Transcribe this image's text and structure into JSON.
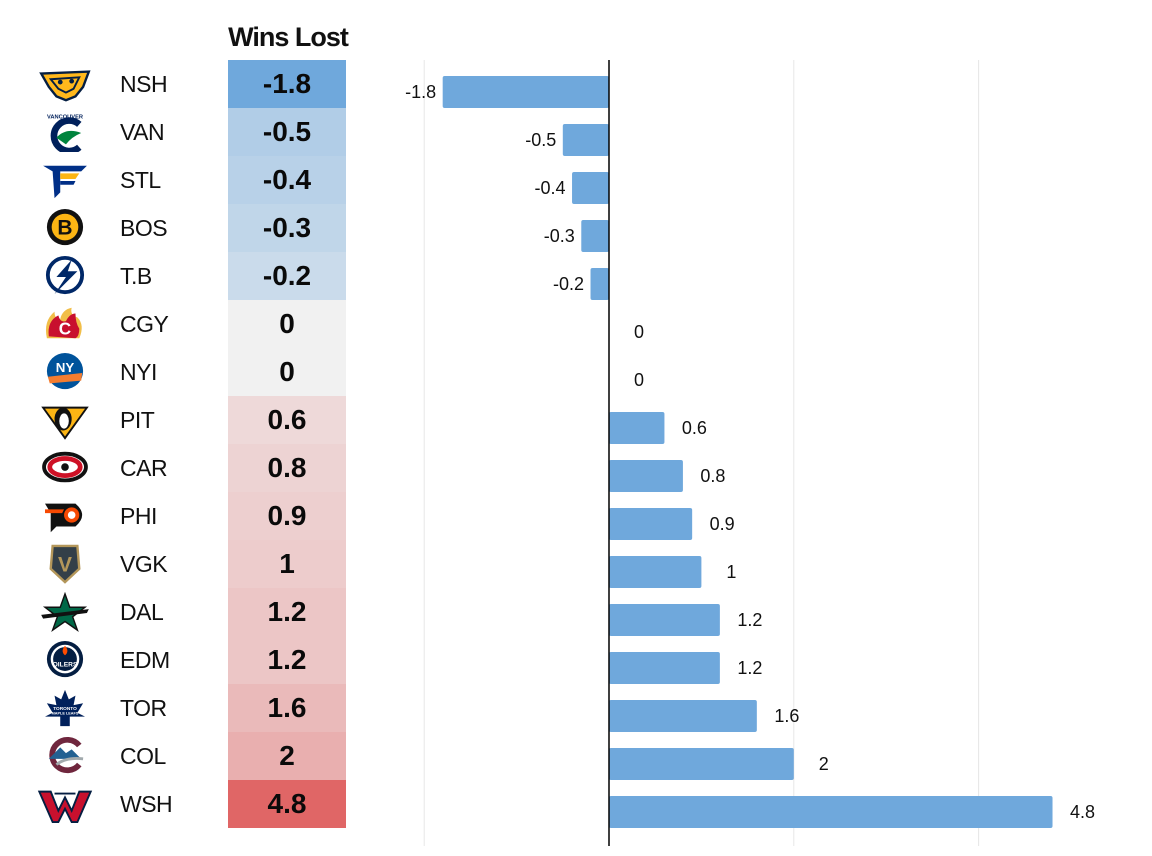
{
  "header": {
    "title": "Wins Lost"
  },
  "colors": {
    "bar": "#6fa8dc",
    "cell_negative_strong": "#6fa8dc",
    "cell_neutral": "#f1f1f1",
    "cell_positive_strong": "#e06666",
    "grid": "#e6e6e6",
    "axis": "#000000"
  },
  "chart_data": {
    "type": "bar",
    "orientation": "horizontal",
    "categories": [
      "NSH",
      "VAN",
      "STL",
      "BOS",
      "T.B",
      "CGY",
      "NYI",
      "PIT",
      "CAR",
      "PHI",
      "VGK",
      "DAL",
      "EDM",
      "TOR",
      "COL",
      "WSH"
    ],
    "values": [
      -1.8,
      -0.5,
      -0.4,
      -0.3,
      -0.2,
      0,
      0,
      0.6,
      0.8,
      0.9,
      1,
      1.2,
      1.2,
      1.6,
      2,
      4.8
    ],
    "value_labels": [
      "-1.8",
      "-0.5",
      "-0.4",
      "-0.3",
      "-0.2",
      "0",
      "0",
      "0.6",
      "0.8",
      "0.9",
      "1",
      "1.2",
      "1.2",
      "1.6",
      "2",
      "4.8"
    ],
    "xlim": [
      -2,
      5
    ],
    "grid": true,
    "gridlines_at": [
      -2,
      2,
      4
    ]
  },
  "teams": [
    {
      "abbr": "NSH",
      "value": "-1.8",
      "logo": "nashville-predators-logo"
    },
    {
      "abbr": "VAN",
      "value": "-0.5",
      "logo": "vancouver-canucks-logo",
      "logo_text": "VANCOUVER"
    },
    {
      "abbr": "STL",
      "value": "-0.4",
      "logo": "st-louis-blues-logo"
    },
    {
      "abbr": "BOS",
      "value": "-0.3",
      "logo": "boston-bruins-logo",
      "logo_text": "B"
    },
    {
      "abbr": "T.B",
      "value": "-0.2",
      "logo": "tampa-bay-lightning-logo"
    },
    {
      "abbr": "CGY",
      "value": "0",
      "logo": "calgary-flames-logo",
      "logo_text": "C"
    },
    {
      "abbr": "NYI",
      "value": "0",
      "logo": "new-york-islanders-logo",
      "logo_text": "NY"
    },
    {
      "abbr": "PIT",
      "value": "0.6",
      "logo": "pittsburgh-penguins-logo"
    },
    {
      "abbr": "CAR",
      "value": "0.8",
      "logo": "carolina-hurricanes-logo"
    },
    {
      "abbr": "PHI",
      "value": "0.9",
      "logo": "philadelphia-flyers-logo"
    },
    {
      "abbr": "VGK",
      "value": "1",
      "logo": "vegas-golden-knights-logo",
      "logo_text": "V"
    },
    {
      "abbr": "DAL",
      "value": "1.2",
      "logo": "dallas-stars-logo"
    },
    {
      "abbr": "EDM",
      "value": "1.2",
      "logo": "edmonton-oilers-logo",
      "logo_text": "OILERS"
    },
    {
      "abbr": "TOR",
      "value": "1.6",
      "logo": "toronto-maple-leafs-logo",
      "logo_text": "TORONTO MAPLE LEAFS"
    },
    {
      "abbr": "COL",
      "value": "2",
      "logo": "colorado-avalanche-logo",
      "logo_text": "C"
    },
    {
      "abbr": "WSH",
      "value": "4.8",
      "logo": "washington-capitals-logo",
      "logo_text": "W"
    }
  ]
}
